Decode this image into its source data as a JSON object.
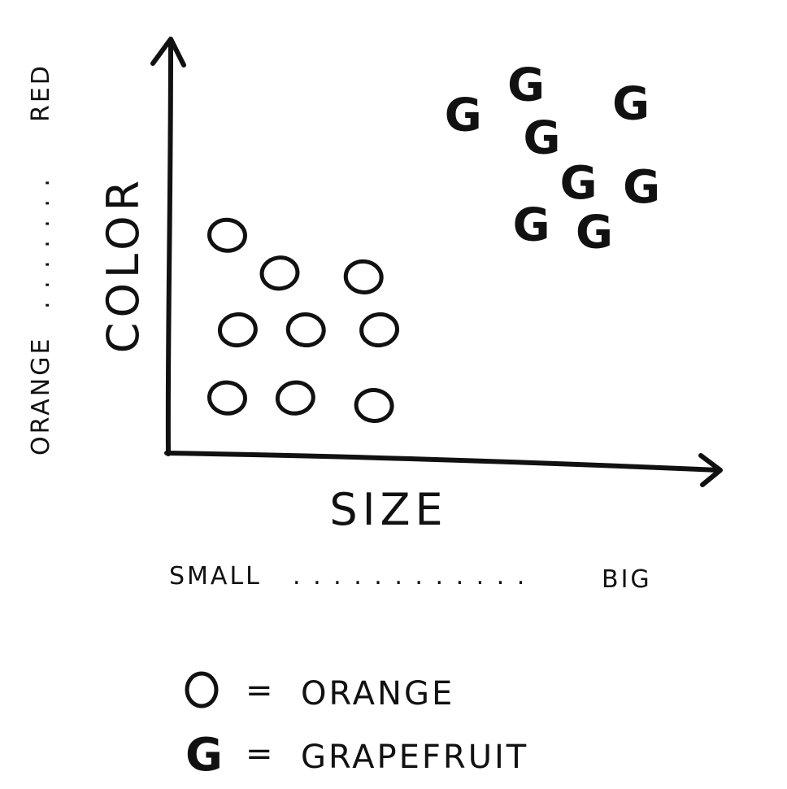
{
  "chart_data": {
    "type": "scatter",
    "xlabel": "SIZE",
    "ylabel": "COLOR",
    "x_range_labels": {
      "min": "SMALL",
      "max": "BIG"
    },
    "y_range_labels": {
      "min": "ORANGE",
      "max": "RED"
    },
    "xlim": [
      0,
      10
    ],
    "ylim": [
      0,
      10
    ],
    "series": [
      {
        "name": "ORANGE",
        "marker": "O",
        "points": [
          {
            "x": 1.0,
            "y": 5.5
          },
          {
            "x": 2.0,
            "y": 4.5
          },
          {
            "x": 3.6,
            "y": 4.4
          },
          {
            "x": 1.2,
            "y": 3.0
          },
          {
            "x": 2.5,
            "y": 3.0
          },
          {
            "x": 3.9,
            "y": 3.0
          },
          {
            "x": 1.0,
            "y": 1.2
          },
          {
            "x": 2.3,
            "y": 1.2
          },
          {
            "x": 3.8,
            "y": 1.0
          }
        ]
      },
      {
        "name": "GRAPEFRUIT",
        "marker": "G",
        "points": [
          {
            "x": 6.7,
            "y": 9.5
          },
          {
            "x": 5.5,
            "y": 8.7
          },
          {
            "x": 8.7,
            "y": 9.0
          },
          {
            "x": 7.0,
            "y": 8.1
          },
          {
            "x": 7.7,
            "y": 6.9
          },
          {
            "x": 8.9,
            "y": 6.8
          },
          {
            "x": 6.8,
            "y": 5.8
          },
          {
            "x": 8.0,
            "y": 5.6
          }
        ]
      }
    ]
  },
  "legend": [
    {
      "symbol": "O",
      "equals": "=",
      "label": "ORANGE"
    },
    {
      "symbol": "G",
      "equals": "=",
      "label": "GRAPEFRUIT"
    }
  ],
  "x_dots": ". . . . . . . . . . . .",
  "y_dots": ". . . . . . ."
}
